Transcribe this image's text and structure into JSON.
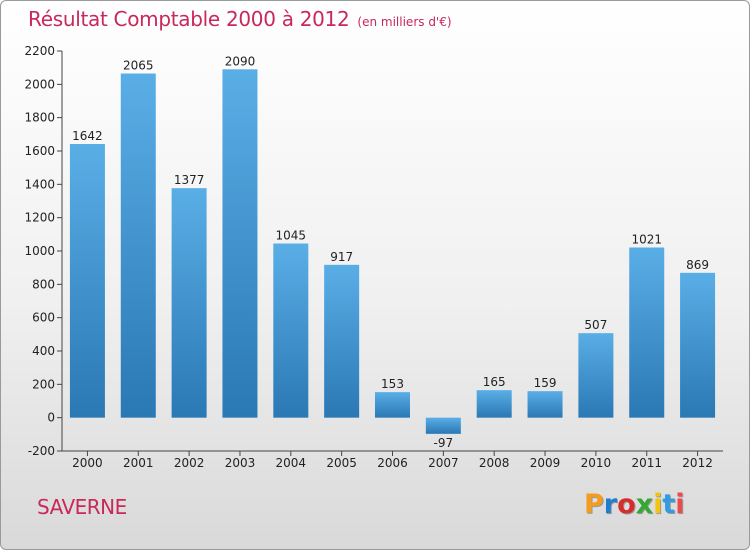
{
  "header": {
    "title": "Résultat Comptable 2000 à 2012",
    "subtitle": "(en milliers d'€)"
  },
  "footer": {
    "place": "SAVERNE",
    "logo_letters": [
      "P",
      "r",
      "o",
      "x",
      "i",
      "t",
      "i"
    ],
    "logo_colors": [
      "#f39c1f",
      "#1f7ccf",
      "#d62c2c",
      "#34a834",
      "#f1c40f",
      "#2f9be0",
      "#e84c4c"
    ]
  },
  "colors": {
    "bar_top": "#5aaee6",
    "bar_bottom": "#2a78b4",
    "axis": "#444444",
    "title": "#c8285a"
  },
  "chart_data": {
    "type": "bar",
    "title": "Résultat Comptable 2000 à 2012",
    "subtitle": "(en milliers d'€)",
    "categories": [
      "2000",
      "2001",
      "2002",
      "2003",
      "2004",
      "2005",
      "2006",
      "2007",
      "2008",
      "2009",
      "2010",
      "2011",
      "2012"
    ],
    "values": [
      1642,
      2065,
      1377,
      2090,
      1045,
      917,
      153,
      -97,
      165,
      159,
      507,
      1021,
      869
    ],
    "ylim": [
      -200,
      2200
    ],
    "yticks": [
      -200,
      0,
      200,
      400,
      600,
      800,
      1000,
      1200,
      1400,
      1600,
      1800,
      2000,
      2200
    ],
    "grid": false,
    "xlabel": "",
    "ylabel": ""
  }
}
